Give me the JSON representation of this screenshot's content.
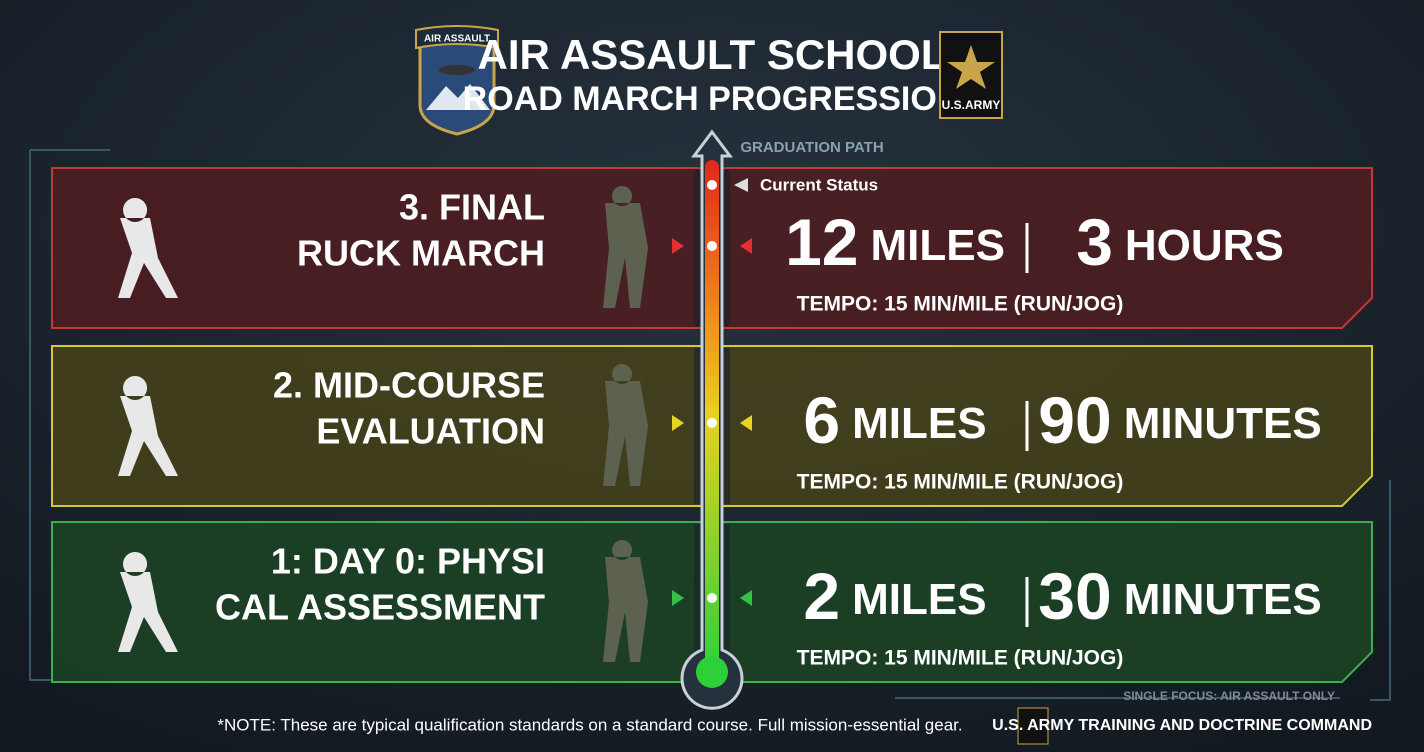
{
  "header": {
    "badge_text": "AIR ASSAULT",
    "title": "AIR ASSAULT SCHOOL",
    "subtitle": "ROAD MARCH PROGRESSION",
    "logo_text": "U.S.ARMY"
  },
  "path_label": "GRADUATION PATH",
  "current_status": "Current Status",
  "stages": [
    {
      "label_lines": [
        "3. FINAL",
        "RUCK MARCH"
      ],
      "distance": 12,
      "distance_unit": "MILES",
      "time": 3,
      "time_unit": "HOURS",
      "tempo": "TEMPO: 15 MIN/MILE (RUN/JOG)"
    },
    {
      "label_lines": [
        "2. MID-COURSE",
        "EVALUATION"
      ],
      "distance": 6,
      "distance_unit": "MILES",
      "time": 90,
      "time_unit": "MINUTES",
      "tempo": "TEMPO: 15 MIN/MILE (RUN/JOG)"
    },
    {
      "label_lines": [
        "1: DAY 0: PHYSI",
        "CAL ASSESSMENT"
      ],
      "distance": 2,
      "distance_unit": "MILES",
      "time": 30,
      "time_unit": "MINUTES",
      "tempo": "TEMPO: 15 MIN/MILE (RUN/JOG)"
    }
  ],
  "footer": {
    "note": "*NOTE: These are typical qualification standards on a standard course. Full mission-essential gear.",
    "focus": "SINGLE FOCUS: AIR ASSAULT ONLY",
    "command": "U.S. ARMY TRAINING AND DOCTRINE COMMAND"
  }
}
